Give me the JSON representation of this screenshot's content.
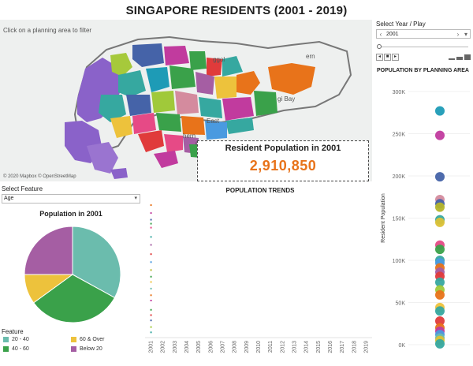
{
  "title": "SINGAPORE RESIDENTS (2001 - 2019)",
  "map": {
    "hint": "Click on a planning area to filter",
    "credit": "© 2020 Mapbox © OpenStreetMap",
    "place_labels": [
      "ggol",
      "gi Bay",
      "East",
      "hern",
      "ds",
      "ern"
    ]
  },
  "resident_box": {
    "label": "Resident Population in 2001",
    "value": "2,910,850"
  },
  "year_control": {
    "label": "Select Year / Play",
    "selected": "2001",
    "prev_icon": "chevron-left-icon",
    "next_icon": "chevron-right-icon"
  },
  "feature": {
    "label": "Select Feature",
    "selected": "Age"
  },
  "pie": {
    "title": "Population in 2001"
  },
  "legend": {
    "title": "Feature",
    "items": [
      {
        "label": "20 - 40",
        "color": "#6bbcad"
      },
      {
        "label": "60 & Over",
        "color": "#edc23c"
      },
      {
        "label": "40 - 60",
        "color": "#3aa14a"
      },
      {
        "label": "Below 20",
        "color": "#a55ea3"
      }
    ]
  },
  "trends": {
    "title": "POPULATION TRENDS"
  },
  "scatter": {
    "title": "POPULATION BY PLANNING AREA",
    "ylabel": "Resident Population"
  },
  "chart_data": [
    {
      "type": "pie",
      "title": "Population in 2001",
      "categories": [
        "20 - 40",
        "40 - 60",
        "60 & Over",
        "Below 20"
      ],
      "values": [
        33,
        32,
        10,
        25
      ],
      "colors": [
        "#6bbcad",
        "#3aa14a",
        "#edc23c",
        "#a55ea3"
      ]
    },
    {
      "type": "scatter",
      "title": "POPULATION BY PLANNING AREA",
      "ylabel": "Resident Population",
      "ylim": [
        0,
        300000
      ],
      "yticks": [
        "0K",
        "50K",
        "100K",
        "150K",
        "200K",
        "250K",
        "300K"
      ],
      "values": [
        277000,
        248000,
        199000,
        172000,
        167000,
        163000,
        148000,
        145000,
        118000,
        113000,
        100000,
        97000,
        91000,
        86000,
        81000,
        74000,
        65000,
        59000,
        44000,
        40000,
        28000,
        20000,
        16000,
        12000,
        8000,
        5000,
        1000
      ],
      "colors": [
        "#1e9bb6",
        "#c13b9e",
        "#4563a8",
        "#d48b9e",
        "#4563a8",
        "#b5b52a",
        "#36a8a0",
        "#dcc136",
        "#e64a86",
        "#3aa14a",
        "#36a8a0",
        "#4a9ae0",
        "#e8731a",
        "#a55ea3",
        "#e03b3b",
        "#36a8a0",
        "#a0c93a",
        "#e8731a",
        "#edc23c",
        "#36a8a0",
        "#e03b3b",
        "#e8731a",
        "#c13b9e",
        "#4a9ae0",
        "#6bbcad",
        "#dcc136",
        "#36a8a0"
      ]
    },
    {
      "type": "line",
      "title": "POPULATION TRENDS",
      "x": [
        "2001",
        "2002",
        "2003",
        "2004",
        "2005",
        "2006",
        "2007",
        "2008",
        "2009",
        "2010",
        "2011",
        "2012",
        "2013",
        "2014",
        "2015",
        "2016",
        "2017",
        "2018",
        "2019"
      ],
      "series_2001_marks": [
        0.03,
        0.09,
        0.14,
        0.17,
        0.2,
        0.27,
        0.33,
        0.4,
        0.46,
        0.52,
        0.57,
        0.61,
        0.66,
        0.71,
        0.75,
        0.82,
        0.86,
        0.9,
        0.95,
        0.99
      ],
      "mark_colors": [
        "#e8731a",
        "#c13b9e",
        "#4563a8",
        "#3aa14a",
        "#e64a86",
        "#36a8a0",
        "#a55ea3",
        "#e03b3b",
        "#4a9ae0",
        "#b5b52a",
        "#3aa14a",
        "#edc23c",
        "#6bbcad",
        "#e8731a",
        "#c13b9e",
        "#3aa14a",
        "#e03b3b",
        "#4563a8",
        "#a0c93a",
        "#36a8a0"
      ]
    }
  ]
}
